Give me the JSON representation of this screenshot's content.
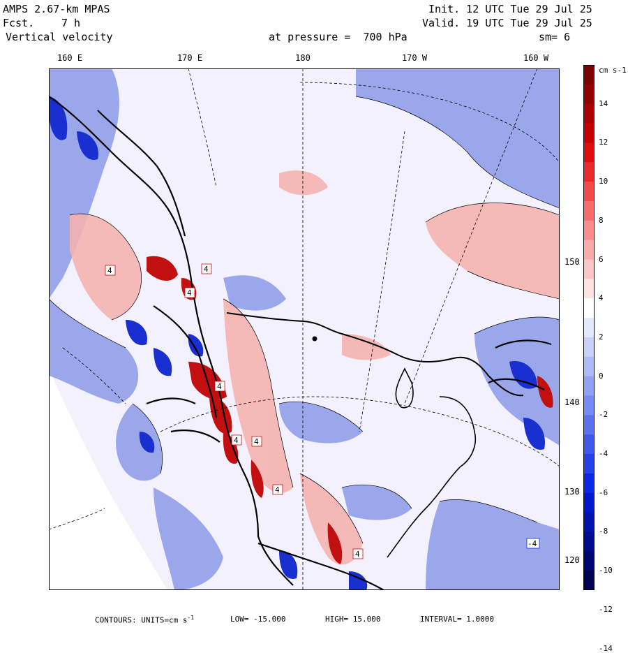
{
  "header": {
    "model": "AMPS 2.67-km MPAS",
    "fcst_label": "Fcst.",
    "fcst_value": "7 h",
    "variable": "Vertical velocity",
    "pressure_text": "at pressure =  700 hPa",
    "init": "Init. 12 UTC Tue 29 Jul 25",
    "valid": "Valid. 19 UTC Tue 29 Jul 25",
    "smoothing": "sm= 6"
  },
  "longitude_labels": [
    "160 E",
    "170 E",
    "180",
    "170 W",
    "160 W"
  ],
  "latitude_labels": [
    "150 W",
    "140 W",
    "130 W",
    "120 W"
  ],
  "colorbar": {
    "units": "cm s-1",
    "tick_labels": [
      "14",
      "12",
      "10",
      "8",
      "6",
      "4",
      "2",
      "0",
      "-2",
      "-4",
      "-6",
      "-8",
      "-10",
      "-12",
      "-14"
    ],
    "colors": [
      "#7a0000",
      "#930000",
      "#ac0000",
      "#c40000",
      "#dc0d0d",
      "#ea2a2a",
      "#f24a4a",
      "#f76b6b",
      "#f98c8c",
      "#fbaaaa",
      "#fdc6c6",
      "#fee2e2",
      "#ffffff",
      "#e4e8fd",
      "#c9d1fb",
      "#adb9f8",
      "#92a1f5",
      "#7789f2",
      "#5c71ee",
      "#4059eb",
      "#2541e8",
      "#0a29e4",
      "#0018cc",
      "#0012ad",
      "#000c8e",
      "#000670",
      "#000051"
    ]
  },
  "footer": {
    "contours": "CONTOURS:  UNITS=cm s",
    "units_sup": "-1",
    "low": "LOW= -15.000",
    "high": "HIGH=  15.000",
    "interval": "INTERVAL=   1.0000"
  },
  "contour_labels": [
    "4",
    "4",
    "4",
    "4",
    "4",
    "4",
    "4",
    "-4",
    "4"
  ],
  "map": {
    "background_color": "#f2f1fd",
    "positive_color": "#f5b3b0",
    "negative_color": "#8c9ae8",
    "strong_positive_color": "#c21010",
    "strong_negative_color": "#1a2fcf"
  }
}
